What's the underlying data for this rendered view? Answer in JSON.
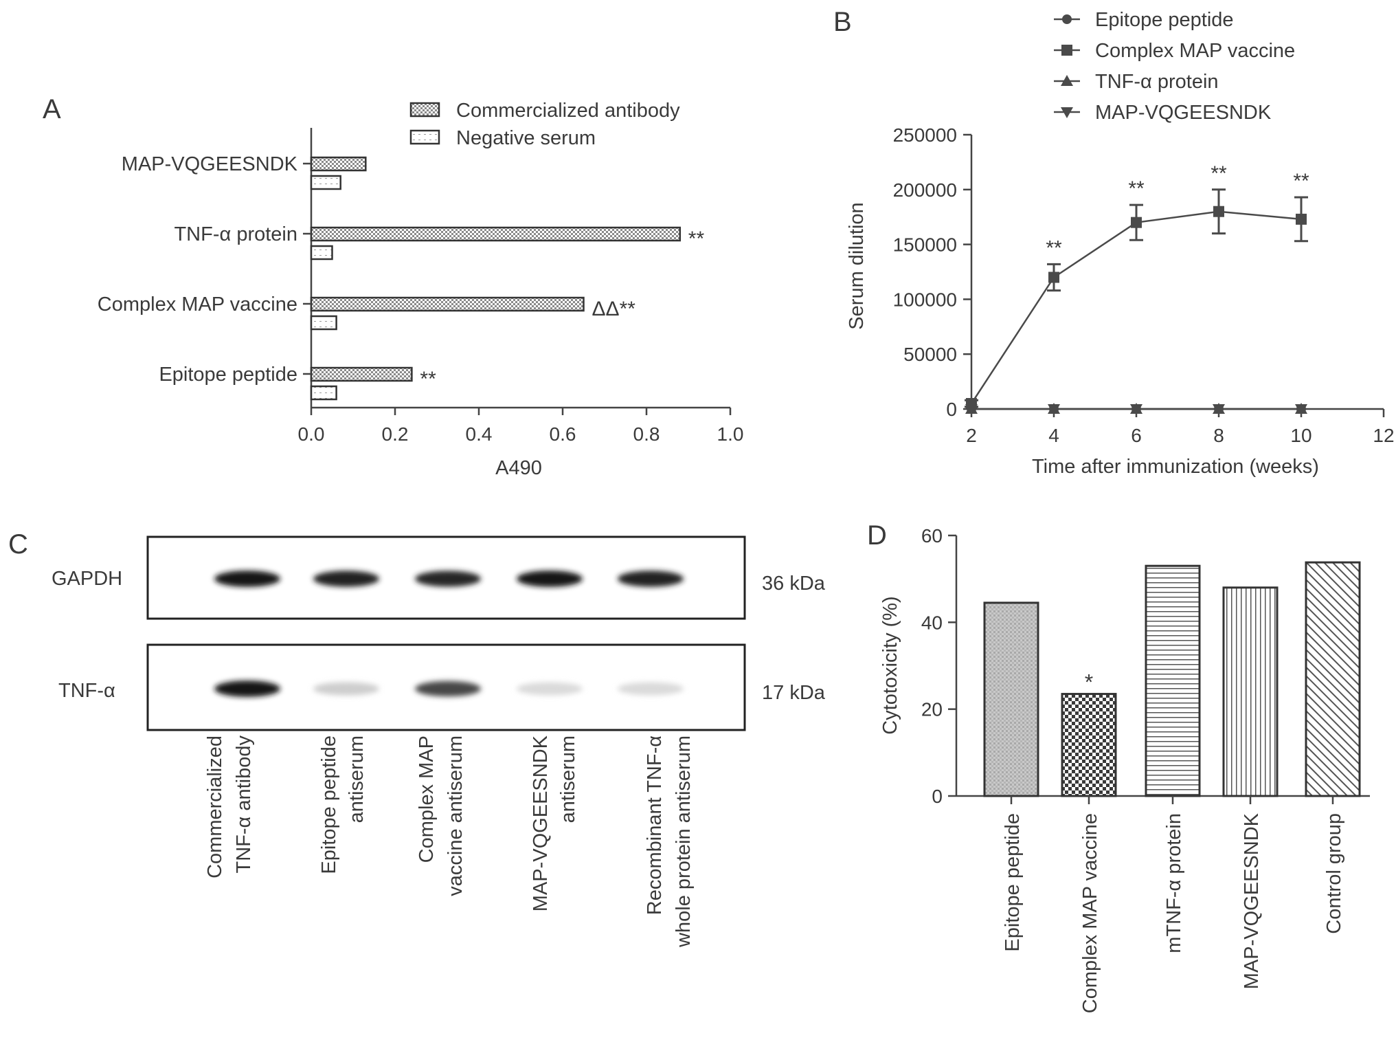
{
  "panels": {
    "a": "A",
    "b": "B",
    "c": "C",
    "d": "D"
  },
  "chart_data": [
    {
      "panel": "A",
      "type": "bar",
      "orientation": "horizontal",
      "categories": [
        "MAP-VQGEESNDK",
        "TNF-α protein",
        "Complex MAP vaccine",
        "Epitope peptide"
      ],
      "series": [
        {
          "name": "Commercialized antibody",
          "values": [
            0.13,
            0.88,
            0.65,
            0.24
          ]
        },
        {
          "name": "Negative serum",
          "values": [
            0.07,
            0.05,
            0.06,
            0.06
          ]
        }
      ],
      "annotations": [
        "",
        "**",
        "ΔΔ**",
        "**"
      ],
      "xlabel": "A490",
      "xlim": [
        0,
        1.0
      ],
      "xticks": [
        "0.0",
        "0.2",
        "0.4",
        "0.6",
        "0.8",
        "1.0"
      ],
      "legend": "top-right"
    },
    {
      "panel": "B",
      "type": "line",
      "x": [
        2,
        4,
        6,
        8,
        10
      ],
      "series": [
        {
          "name": "Epitope peptide",
          "marker": "circle",
          "values": [
            0,
            0,
            0,
            0,
            0
          ]
        },
        {
          "name": "Complex MAP vaccine",
          "marker": "square",
          "values": [
            5000,
            120000,
            170000,
            180000,
            173000
          ],
          "errors": [
            3000,
            12000,
            16000,
            20000,
            20000
          ]
        },
        {
          "name": "TNF-α protein",
          "marker": "triangle-up",
          "values": [
            0,
            0,
            0,
            0,
            0
          ]
        },
        {
          "name": "MAP-VQGEESNDK",
          "marker": "triangle-down",
          "values": [
            0,
            0,
            0,
            0,
            0
          ]
        }
      ],
      "annotations": [
        "",
        "**",
        "**",
        "**",
        "**"
      ],
      "xlabel": "Time after immunization (weeks)",
      "ylabel": "Serum dilution",
      "xlim": [
        2,
        12
      ],
      "ylim": [
        0,
        250000
      ],
      "xticks": [
        "2",
        "4",
        "6",
        "8",
        "10",
        "12"
      ],
      "yticks": [
        "0",
        "50000",
        "100000",
        "150000",
        "200000",
        "250000"
      ],
      "legend": "top"
    },
    {
      "panel": "C",
      "type": "blot",
      "rows": [
        {
          "label": "GAPDH",
          "size": "36 kDa",
          "intensities": [
            0.95,
            0.9,
            0.88,
            0.95,
            0.9
          ]
        },
        {
          "label": "TNF-α",
          "size": "17 kDa",
          "intensities": [
            0.95,
            0.2,
            0.75,
            0.15,
            0.15
          ]
        }
      ],
      "lanes": [
        [
          "Commercialized",
          "TNF-α antibody"
        ],
        [
          "Epitope peptide",
          "antiserum"
        ],
        [
          "Complex MAP",
          "vaccine antiserum"
        ],
        [
          "MAP-VQGEESNDK",
          "antiserum"
        ],
        [
          "Recombinant TNF-α",
          "whole protein antiserum"
        ]
      ]
    },
    {
      "panel": "D",
      "type": "bar",
      "categories": [
        "Epitope peptide",
        "Complex MAP vaccine",
        "mTNF-α protein",
        "MAP-VQGEESNDK",
        "Control group"
      ],
      "values": [
        44.5,
        23.5,
        53.0,
        48.0,
        53.8
      ],
      "patterns": [
        "dots",
        "checker",
        "hlines",
        "vlines",
        "diag"
      ],
      "annotations": [
        "",
        "*",
        "",
        "",
        ""
      ],
      "ylabel": "Cytotoxicity (%)",
      "ylim": [
        0,
        60
      ],
      "yticks": [
        "0",
        "20",
        "40",
        "60"
      ]
    }
  ]
}
